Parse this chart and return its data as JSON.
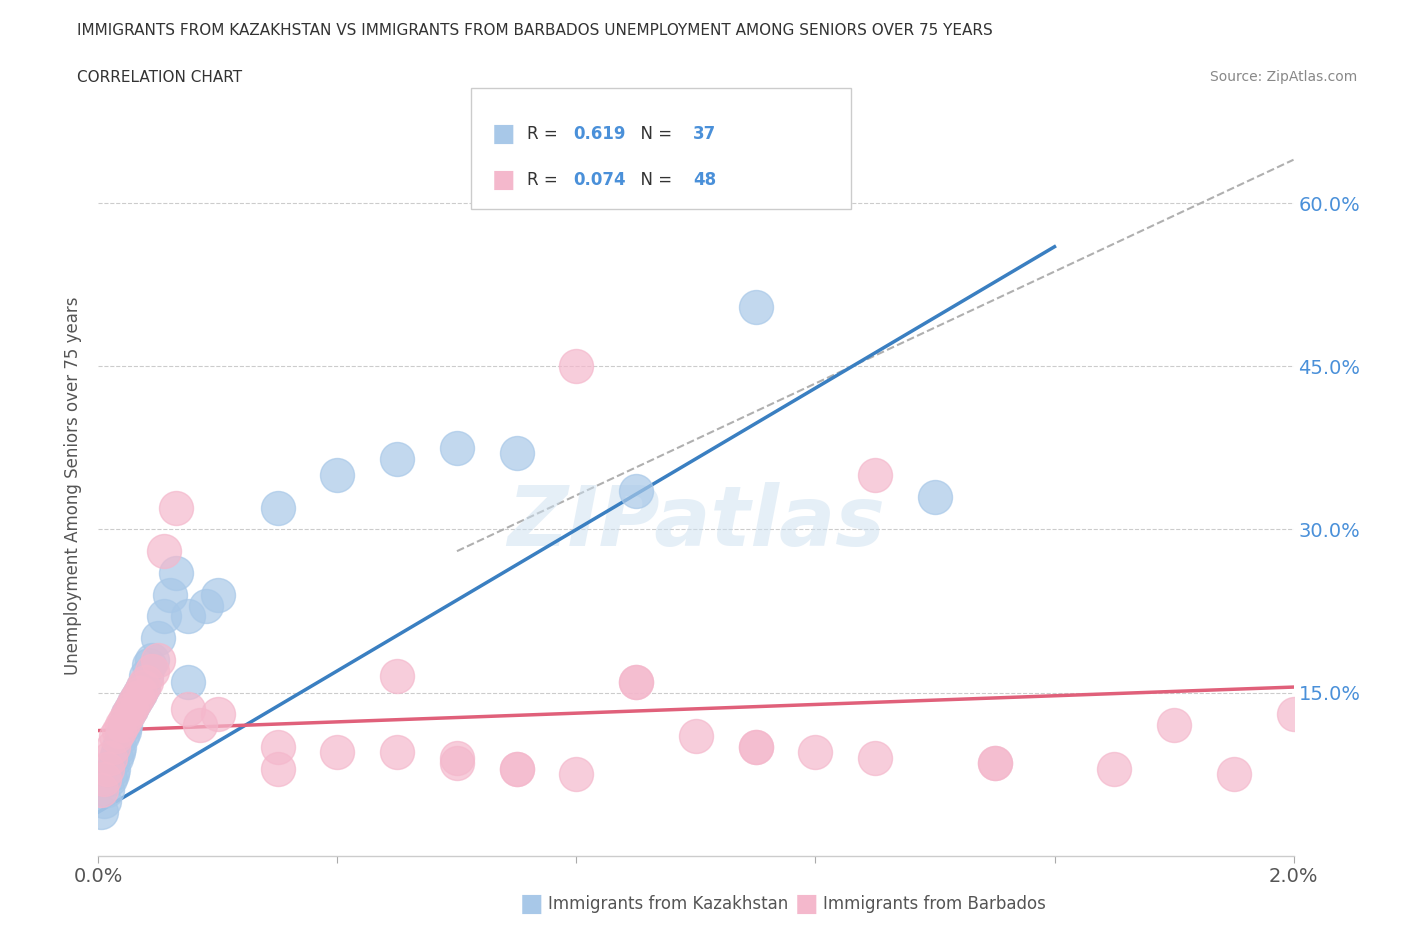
{
  "title_line1": "IMMIGRANTS FROM KAZAKHSTAN VS IMMIGRANTS FROM BARBADOS UNEMPLOYMENT AMONG SENIORS OVER 75 YEARS",
  "title_line2": "CORRELATION CHART",
  "source": "Source: ZipAtlas.com",
  "ylabel": "Unemployment Among Seniors over 75 years",
  "xlim": [
    0.0,
    0.02
  ],
  "ylim": [
    0.0,
    0.68
  ],
  "xticks": [
    0.0,
    0.004,
    0.008,
    0.012,
    0.016,
    0.02
  ],
  "xtick_labels": [
    "0.0%",
    "",
    "",
    "",
    "",
    "2.0%"
  ],
  "ytick_positions": [
    0.15,
    0.3,
    0.45,
    0.6
  ],
  "ytick_labels": [
    "15.0%",
    "30.0%",
    "45.0%",
    "60.0%"
  ],
  "kaz_color": "#a8c8e8",
  "kaz_line_color": "#3a7fc1",
  "barb_color": "#f4b8cc",
  "barb_line_color": "#e0607a",
  "kaz_R": 0.619,
  "kaz_N": 37,
  "barb_R": 0.074,
  "barb_N": 48,
  "kaz_scatter_x": [
    5e-05,
    0.0001,
    0.00015,
    0.0002,
    0.00022,
    0.00025,
    0.0003,
    0.00032,
    0.00035,
    0.0004,
    0.00042,
    0.00045,
    0.0005,
    0.00055,
    0.0006,
    0.00065,
    0.0007,
    0.00075,
    0.0008,
    0.00085,
    0.0009,
    0.001,
    0.0011,
    0.0012,
    0.0013,
    0.0015,
    0.0018,
    0.002,
    0.003,
    0.004,
    0.005,
    0.006,
    0.007,
    0.009,
    0.011,
    0.014,
    0.0015
  ],
  "kaz_scatter_y": [
    0.04,
    0.05,
    0.06,
    0.07,
    0.075,
    0.08,
    0.09,
    0.095,
    0.1,
    0.11,
    0.115,
    0.12,
    0.13,
    0.135,
    0.14,
    0.145,
    0.15,
    0.155,
    0.165,
    0.175,
    0.18,
    0.2,
    0.22,
    0.24,
    0.26,
    0.22,
    0.23,
    0.24,
    0.32,
    0.35,
    0.365,
    0.375,
    0.37,
    0.335,
    0.505,
    0.33,
    0.16
  ],
  "barb_scatter_x": [
    5e-05,
    0.0001,
    0.00015,
    0.0002,
    0.00025,
    0.0003,
    0.00035,
    0.0004,
    0.00045,
    0.0005,
    0.00055,
    0.0006,
    0.00065,
    0.0007,
    0.00075,
    0.0008,
    0.0009,
    0.001,
    0.0011,
    0.0013,
    0.0015,
    0.0017,
    0.002,
    0.003,
    0.004,
    0.005,
    0.006,
    0.007,
    0.008,
    0.009,
    0.01,
    0.011,
    0.012,
    0.013,
    0.015,
    0.017,
    0.018,
    0.019,
    0.02,
    0.003,
    0.005,
    0.007,
    0.009,
    0.011,
    0.013,
    0.015,
    0.008,
    0.006
  ],
  "barb_scatter_y": [
    0.06,
    0.07,
    0.08,
    0.09,
    0.1,
    0.11,
    0.115,
    0.12,
    0.125,
    0.13,
    0.135,
    0.14,
    0.145,
    0.15,
    0.155,
    0.16,
    0.17,
    0.18,
    0.28,
    0.32,
    0.135,
    0.12,
    0.13,
    0.1,
    0.095,
    0.165,
    0.085,
    0.08,
    0.075,
    0.16,
    0.11,
    0.1,
    0.095,
    0.09,
    0.085,
    0.08,
    0.12,
    0.075,
    0.13,
    0.08,
    0.095,
    0.08,
    0.16,
    0.1,
    0.35,
    0.085,
    0.45,
    0.09
  ],
  "kaz_line_x": [
    0.0,
    0.016
  ],
  "kaz_line_y": [
    0.04,
    0.56
  ],
  "barb_line_x": [
    0.0,
    0.02
  ],
  "barb_line_y": [
    0.115,
    0.155
  ],
  "ref_line_x": [
    0.006,
    0.02
  ],
  "ref_line_y": [
    0.28,
    0.64
  ],
  "watermark_text": "ZIPatlas",
  "background_color": "#ffffff",
  "grid_color": "#cccccc"
}
